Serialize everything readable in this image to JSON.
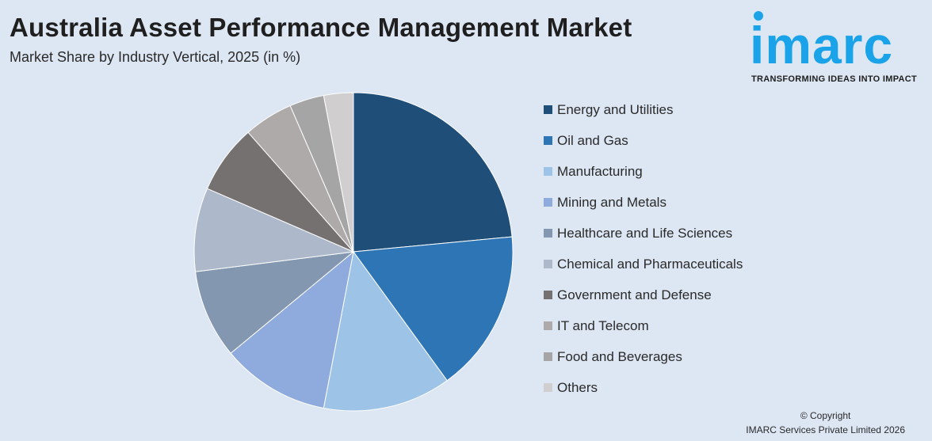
{
  "header": {
    "title": "Australia Asset Performance Management Market",
    "subtitle": "Market Share by Industry Vertical, 2025 (in %)"
  },
  "logo": {
    "word": "imarc",
    "tagline": "TRANSFORMING IDEAS INTO IMPACT",
    "color": "#1aa3e8"
  },
  "chart_data": {
    "type": "pie",
    "title": "",
    "legend_position": "right",
    "start_angle": "12 o'clock, clockwise",
    "unit": "%",
    "slices": [
      {
        "label": "Energy and Utilities",
        "value": 23.5,
        "color": "#1f4e79"
      },
      {
        "label": "Oil and Gas",
        "value": 16.5,
        "color": "#2e75b6"
      },
      {
        "label": "Manufacturing",
        "value": 13.0,
        "color": "#9dc3e6"
      },
      {
        "label": "Mining and Metals",
        "value": 11.0,
        "color": "#8faadc"
      },
      {
        "label": "Healthcare and Life Sciences",
        "value": 9.0,
        "color": "#8497b0"
      },
      {
        "label": "Chemical and Pharmaceuticals",
        "value": 8.5,
        "color": "#adb9ca"
      },
      {
        "label": "Government and Defense",
        "value": 7.0,
        "color": "#767171"
      },
      {
        "label": "IT and Telecom",
        "value": 5.0,
        "color": "#aeaaaa"
      },
      {
        "label": "Food and Beverages",
        "value": 3.5,
        "color": "#a5a5a5"
      },
      {
        "label": "Others",
        "value": 3.0,
        "color": "#d0cece"
      }
    ]
  },
  "footer": {
    "copyright_line1": "© Copyright",
    "copyright_line2": "IMARC Services Private Limited 2026"
  }
}
